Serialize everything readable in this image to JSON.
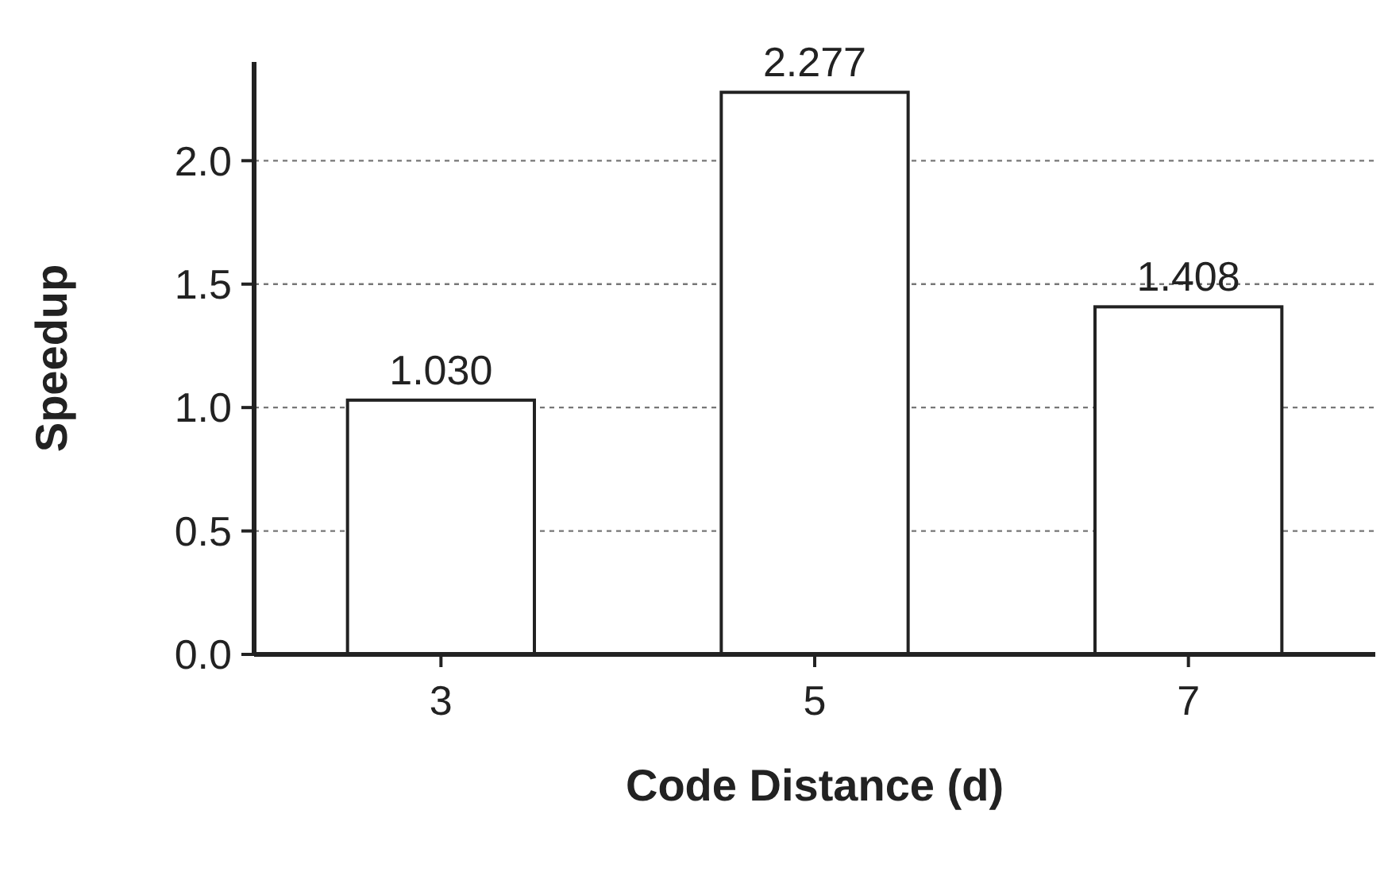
{
  "chart_data": {
    "type": "bar",
    "xlabel": "Code Distance (d)",
    "ylabel": "Speedup",
    "categories": [
      "3",
      "5",
      "7"
    ],
    "values": [
      1.03,
      2.277,
      1.408
    ],
    "value_labels": [
      "1.030",
      "2.277",
      "1.408"
    ],
    "color": "#ffffff",
    "ylim": [
      0,
      2.4
    ],
    "yticks": [
      {
        "value": 0,
        "label": "0.0"
      },
      {
        "value": 0.5,
        "label": "0.5"
      },
      {
        "value": 1,
        "label": "1.0"
      },
      {
        "value": 1.5,
        "label": "1.5"
      },
      {
        "value": 2,
        "label": "2.0"
      }
    ],
    "grid": "y"
  }
}
